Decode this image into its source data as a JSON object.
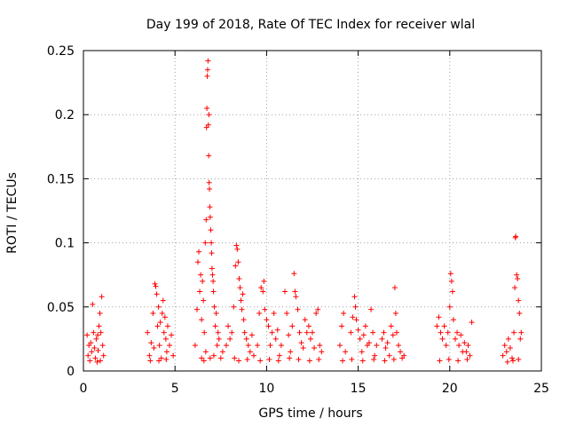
{
  "chart_data": {
    "type": "scatter",
    "title": "Day 199 of 2018, Rate Of TEC Index for receiver wlal",
    "xlabel": "GPS time / hours",
    "ylabel": "ROTI / TECUs",
    "xlim": [
      0,
      25
    ],
    "ylim": [
      0,
      0.25
    ],
    "xticks": [
      0,
      5,
      10,
      15,
      20,
      25
    ],
    "xtick_labels": [
      "0",
      "5",
      "10",
      "15",
      "20",
      "25"
    ],
    "yticks": [
      0,
      0.05,
      0.1,
      0.15,
      0.2,
      0.25
    ],
    "ytick_labels": [
      "0",
      "0.05",
      "0.1",
      "0.15",
      "0.2",
      "0.25"
    ],
    "grid": true,
    "marker": "+",
    "color": "#ff0000",
    "series": [
      {
        "name": "ROTI",
        "points": [
          [
            0.2,
            0.028
          ],
          [
            0.25,
            0.012
          ],
          [
            0.3,
            0.02
          ],
          [
            0.35,
            0.008
          ],
          [
            0.4,
            0.022
          ],
          [
            0.45,
            0.015
          ],
          [
            0.5,
            0.052
          ],
          [
            0.55,
            0.03
          ],
          [
            0.6,
            0.018
          ],
          [
            0.65,
            0.01
          ],
          [
            0.7,
            0.025
          ],
          [
            0.75,
            0.007
          ],
          [
            0.8,
            0.016
          ],
          [
            0.85,
            0.035
          ],
          [
            0.9,
            0.045
          ],
          [
            0.95,
            0.03
          ],
          [
            1.0,
            0.058
          ],
          [
            1.05,
            0.02
          ],
          [
            1.1,
            0.012
          ],
          [
            0.92,
            0.008
          ],
          [
            0.78,
            0.028
          ],
          [
            3.5,
            0.03
          ],
          [
            3.6,
            0.012
          ],
          [
            3.7,
            0.022
          ],
          [
            3.8,
            0.045
          ],
          [
            3.9,
            0.068
          ],
          [
            3.95,
            0.066
          ],
          [
            4.0,
            0.06
          ],
          [
            4.05,
            0.035
          ],
          [
            4.1,
            0.05
          ],
          [
            4.15,
            0.02
          ],
          [
            4.2,
            0.038
          ],
          [
            4.25,
            0.01
          ],
          [
            4.3,
            0.045
          ],
          [
            4.35,
            0.055
          ],
          [
            4.4,
            0.03
          ],
          [
            4.45,
            0.042
          ],
          [
            4.5,
            0.025
          ],
          [
            4.55,
            0.015
          ],
          [
            4.6,
            0.035
          ],
          [
            4.7,
            0.02
          ],
          [
            4.8,
            0.028
          ],
          [
            4.9,
            0.012
          ],
          [
            3.65,
            0.008
          ],
          [
            3.85,
            0.018
          ],
          [
            4.12,
            0.008
          ],
          [
            4.52,
            0.009
          ],
          [
            6.1,
            0.02
          ],
          [
            6.2,
            0.048
          ],
          [
            6.25,
            0.085
          ],
          [
            6.3,
            0.093
          ],
          [
            6.35,
            0.062
          ],
          [
            6.4,
            0.075
          ],
          [
            6.45,
            0.04
          ],
          [
            6.5,
            0.07
          ],
          [
            6.55,
            0.055
          ],
          [
            6.6,
            0.03
          ],
          [
            6.65,
            0.1
          ],
          [
            6.7,
            0.118
          ],
          [
            6.72,
            0.19
          ],
          [
            6.74,
            0.205
          ],
          [
            6.76,
            0.23
          ],
          [
            6.78,
            0.235
          ],
          [
            6.8,
            0.242
          ],
          [
            6.82,
            0.192
          ],
          [
            6.84,
            0.168
          ],
          [
            6.86,
            0.147
          ],
          [
            6.88,
            0.142
          ],
          [
            6.9,
            0.128
          ],
          [
            6.92,
            0.12
          ],
          [
            6.95,
            0.11
          ],
          [
            6.98,
            0.1
          ],
          [
            7.0,
            0.092
          ],
          [
            7.02,
            0.08
          ],
          [
            7.05,
            0.075
          ],
          [
            7.08,
            0.07
          ],
          [
            7.1,
            0.062
          ],
          [
            7.15,
            0.05
          ],
          [
            7.2,
            0.035
          ],
          [
            7.25,
            0.045
          ],
          [
            7.3,
            0.02
          ],
          [
            7.35,
            0.03
          ],
          [
            6.68,
            0.015
          ],
          [
            6.58,
            0.008
          ],
          [
            6.92,
            0.01
          ],
          [
            7.12,
            0.012
          ],
          [
            6.45,
            0.01
          ],
          [
            6.85,
            0.2
          ],
          [
            7.4,
            0.025
          ],
          [
            7.5,
            0.01
          ],
          [
            7.6,
            0.015
          ],
          [
            7.8,
            0.02
          ],
          [
            7.9,
            0.035
          ],
          [
            8.0,
            0.025
          ],
          [
            8.1,
            0.03
          ],
          [
            8.2,
            0.05
          ],
          [
            8.3,
            0.082
          ],
          [
            8.35,
            0.098
          ],
          [
            8.4,
            0.095
          ],
          [
            8.45,
            0.085
          ],
          [
            8.5,
            0.072
          ],
          [
            8.55,
            0.065
          ],
          [
            8.6,
            0.055
          ],
          [
            8.65,
            0.048
          ],
          [
            8.7,
            0.06
          ],
          [
            8.75,
            0.04
          ],
          [
            8.8,
            0.03
          ],
          [
            8.9,
            0.025
          ],
          [
            9.0,
            0.02
          ],
          [
            9.1,
            0.015
          ],
          [
            9.2,
            0.028
          ],
          [
            9.3,
            0.012
          ],
          [
            8.25,
            0.01
          ],
          [
            8.48,
            0.008
          ],
          [
            8.95,
            0.009
          ],
          [
            9.5,
            0.02
          ],
          [
            9.6,
            0.045
          ],
          [
            9.7,
            0.065
          ],
          [
            9.8,
            0.062
          ],
          [
            9.85,
            0.07
          ],
          [
            9.9,
            0.048
          ],
          [
            10.0,
            0.04
          ],
          [
            10.1,
            0.035
          ],
          [
            10.2,
            0.02
          ],
          [
            10.3,
            0.03
          ],
          [
            10.4,
            0.045
          ],
          [
            10.5,
            0.025
          ],
          [
            10.6,
            0.032
          ],
          [
            10.7,
            0.012
          ],
          [
            10.8,
            0.02
          ],
          [
            11.0,
            0.062
          ],
          [
            11.1,
            0.045
          ],
          [
            11.2,
            0.028
          ],
          [
            11.3,
            0.015
          ],
          [
            11.4,
            0.035
          ],
          [
            11.5,
            0.076
          ],
          [
            11.55,
            0.062
          ],
          [
            11.6,
            0.058
          ],
          [
            11.7,
            0.048
          ],
          [
            11.8,
            0.03
          ],
          [
            11.9,
            0.022
          ],
          [
            12.0,
            0.018
          ],
          [
            12.1,
            0.04
          ],
          [
            12.2,
            0.03
          ],
          [
            12.3,
            0.035
          ],
          [
            12.4,
            0.025
          ],
          [
            12.5,
            0.03
          ],
          [
            12.6,
            0.018
          ],
          [
            12.7,
            0.045
          ],
          [
            12.8,
            0.048
          ],
          [
            12.9,
            0.02
          ],
          [
            13.0,
            0.015
          ],
          [
            9.65,
            0.008
          ],
          [
            10.15,
            0.009
          ],
          [
            10.65,
            0.008
          ],
          [
            11.25,
            0.01
          ],
          [
            11.75,
            0.009
          ],
          [
            12.35,
            0.008
          ],
          [
            12.85,
            0.009
          ],
          [
            14.0,
            0.02
          ],
          [
            14.1,
            0.035
          ],
          [
            14.2,
            0.045
          ],
          [
            14.3,
            0.015
          ],
          [
            14.6,
            0.03
          ],
          [
            14.7,
            0.042
          ],
          [
            14.8,
            0.058
          ],
          [
            14.85,
            0.05
          ],
          [
            14.9,
            0.04
          ],
          [
            15.0,
            0.032
          ],
          [
            15.1,
            0.025
          ],
          [
            15.2,
            0.015
          ],
          [
            15.3,
            0.028
          ],
          [
            15.4,
            0.035
          ],
          [
            15.5,
            0.02
          ],
          [
            15.6,
            0.022
          ],
          [
            15.7,
            0.048
          ],
          [
            15.8,
            0.03
          ],
          [
            15.9,
            0.012
          ],
          [
            16.0,
            0.02
          ],
          [
            14.15,
            0.008
          ],
          [
            14.65,
            0.009
          ],
          [
            15.25,
            0.008
          ],
          [
            15.85,
            0.009
          ],
          [
            16.3,
            0.025
          ],
          [
            16.4,
            0.03
          ],
          [
            16.5,
            0.018
          ],
          [
            16.6,
            0.022
          ],
          [
            16.7,
            0.012
          ],
          [
            16.8,
            0.035
          ],
          [
            16.9,
            0.028
          ],
          [
            17.0,
            0.065
          ],
          [
            17.05,
            0.045
          ],
          [
            17.1,
            0.03
          ],
          [
            17.2,
            0.02
          ],
          [
            17.3,
            0.015
          ],
          [
            17.4,
            0.01
          ],
          [
            17.5,
            0.012
          ],
          [
            16.45,
            0.008
          ],
          [
            16.95,
            0.009
          ],
          [
            19.3,
            0.035
          ],
          [
            19.4,
            0.042
          ],
          [
            19.5,
            0.03
          ],
          [
            19.6,
            0.025
          ],
          [
            19.7,
            0.035
          ],
          [
            19.8,
            0.02
          ],
          [
            19.9,
            0.03
          ],
          [
            20.0,
            0.05
          ],
          [
            20.05,
            0.076
          ],
          [
            20.1,
            0.07
          ],
          [
            20.15,
            0.062
          ],
          [
            20.2,
            0.04
          ],
          [
            20.3,
            0.025
          ],
          [
            20.4,
            0.03
          ],
          [
            20.5,
            0.02
          ],
          [
            20.6,
            0.028
          ],
          [
            20.7,
            0.015
          ],
          [
            20.8,
            0.022
          ],
          [
            20.9,
            0.015
          ],
          [
            21.0,
            0.02
          ],
          [
            21.1,
            0.012
          ],
          [
            21.2,
            0.038
          ],
          [
            19.45,
            0.008
          ],
          [
            19.95,
            0.009
          ],
          [
            20.45,
            0.008
          ],
          [
            20.95,
            0.009
          ],
          [
            22.9,
            0.012
          ],
          [
            23.0,
            0.02
          ],
          [
            23.1,
            0.015
          ],
          [
            23.2,
            0.025
          ],
          [
            23.3,
            0.018
          ],
          [
            23.4,
            0.01
          ],
          [
            23.5,
            0.03
          ],
          [
            23.55,
            0.065
          ],
          [
            23.58,
            0.104
          ],
          [
            23.6,
            0.105
          ],
          [
            23.65,
            0.075
          ],
          [
            23.7,
            0.072
          ],
          [
            23.75,
            0.055
          ],
          [
            23.8,
            0.045
          ],
          [
            23.85,
            0.025
          ],
          [
            23.9,
            0.03
          ],
          [
            23.15,
            0.007
          ],
          [
            23.45,
            0.008
          ],
          [
            23.75,
            0.009
          ]
        ]
      }
    ]
  }
}
